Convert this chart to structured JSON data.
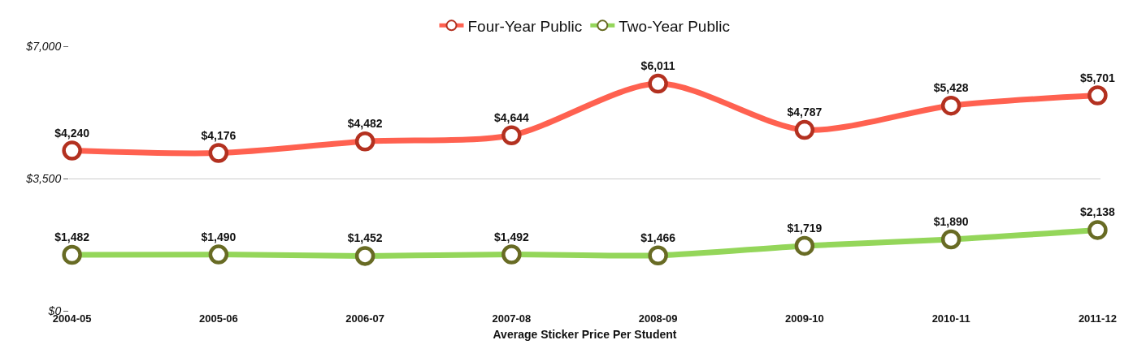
{
  "chart_data": {
    "type": "line",
    "xlabel": "Average Sticker Price Per Student",
    "categories": [
      "2004-05",
      "2005-06",
      "2006-07",
      "2007-08",
      "2008-09",
      "2009-10",
      "2010-11",
      "2011-12"
    ],
    "series": [
      {
        "name": "Four-Year Public",
        "color": "#ff6150",
        "values": [
          4240,
          4176,
          4482,
          4644,
          6011,
          4787,
          5428,
          5701
        ],
        "value_labels": [
          "$4,240",
          "$4,176",
          "$4,482",
          "$4,644",
          "$6,011",
          "$4,787",
          "$5,428",
          "$5,701"
        ]
      },
      {
        "name": "Two-Year Public",
        "color": "#94d65a",
        "values": [
          1482,
          1490,
          1452,
          1492,
          1466,
          1719,
          1890,
          2138
        ],
        "value_labels": [
          "$1,482",
          "$1,490",
          "$1,452",
          "$1,492",
          "$1,466",
          "$1,719",
          "$1,890",
          "$2,138"
        ]
      }
    ],
    "ylim": [
      0,
      7000
    ],
    "yticks": [
      {
        "value": 0,
        "label": "$0"
      },
      {
        "value": 3500,
        "label": "$3,500"
      },
      {
        "value": 7000,
        "label": "$7,000"
      }
    ],
    "grid": "y",
    "legend": "top",
    "marker": "circle",
    "line_style": "solid"
  }
}
